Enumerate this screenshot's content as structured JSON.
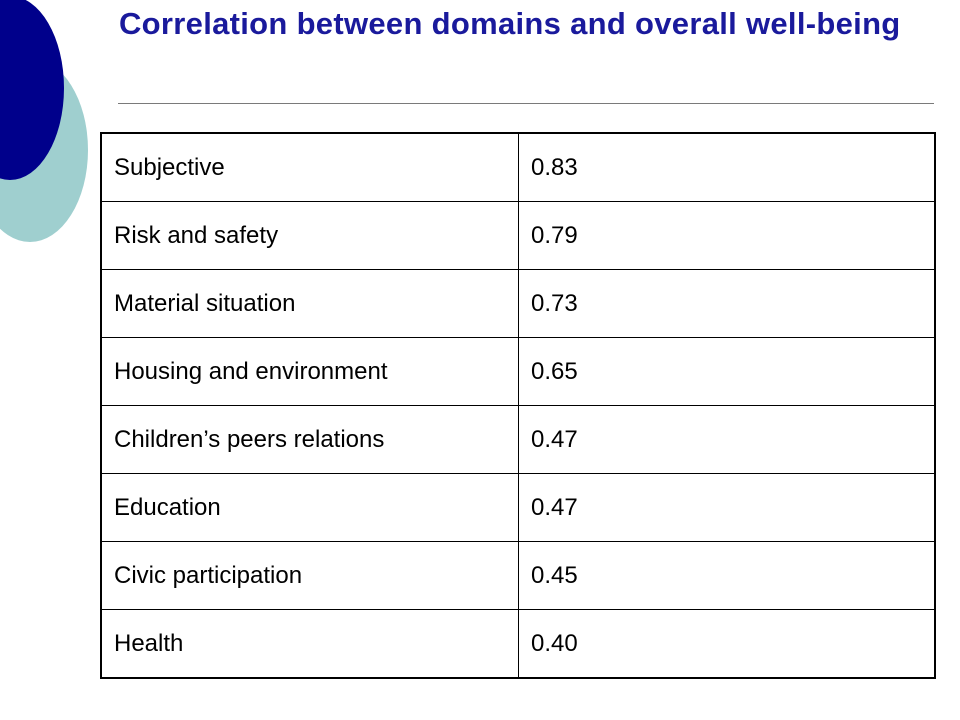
{
  "slide": {
    "title": "Correlation between domains and overall well-being",
    "colors": {
      "title": "#1a1a9c",
      "circle_dark": "#00008b",
      "circle_light": "#9fcfcf",
      "rule": "#7a7a7a"
    }
  },
  "table": {
    "rows": [
      {
        "domain": "Subjective",
        "value": "0.83"
      },
      {
        "domain": "Risk and safety",
        "value": "0.79"
      },
      {
        "domain": "Material  situation",
        "value": "0.73"
      },
      {
        "domain": "Housing and environment",
        "value": "0.65"
      },
      {
        "domain": "Children’s  peers relations",
        "value": "0.47"
      },
      {
        "domain": "Education",
        "value": "0.47"
      },
      {
        "domain": "Civic participation",
        "value": "0.45"
      },
      {
        "domain": "Health",
        "value": "0.40"
      }
    ]
  }
}
